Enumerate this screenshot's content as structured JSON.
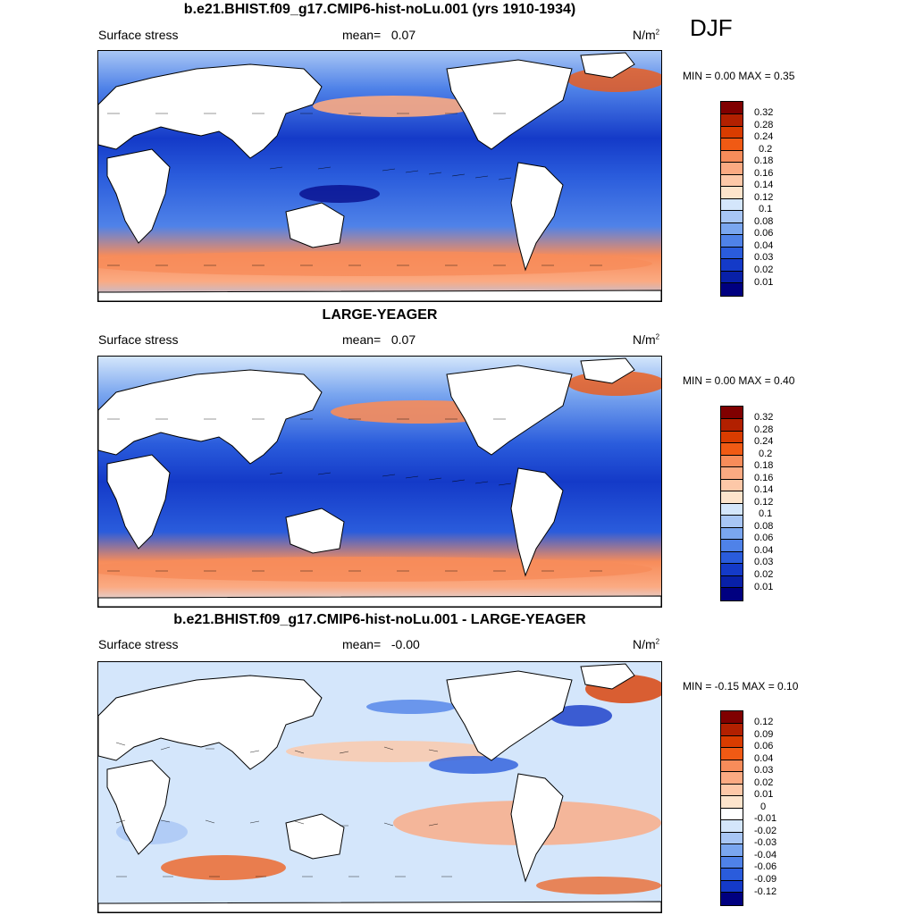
{
  "season": "DJF",
  "panels": [
    {
      "title": "b.e21.BHIST.f09_g17.CMIP6-hist-noLu.001 (yrs 1910-1934)",
      "left_label": "Surface stress",
      "mean_label": "mean=",
      "mean_value": "0.07",
      "units": "N/m",
      "units_sup": "2",
      "minmax": "MIN =   0.00 MAX =   0.35",
      "colorbar_labels": [
        "0.32",
        "0.28",
        "0.24",
        "0.2",
        "0.18",
        "0.16",
        "0.14",
        "0.12",
        "0.1",
        "0.08",
        "0.06",
        "0.04",
        "0.03",
        "0.02",
        "0.01"
      ]
    },
    {
      "title": "LARGE-YEAGER",
      "left_label": "Surface stress",
      "mean_label": "mean=",
      "mean_value": "0.07",
      "units": "N/m",
      "units_sup": "2",
      "minmax": "MIN =   0.00 MAX =   0.40",
      "colorbar_labels": [
        "0.32",
        "0.28",
        "0.24",
        "0.2",
        "0.18",
        "0.16",
        "0.14",
        "0.12",
        "0.1",
        "0.08",
        "0.06",
        "0.04",
        "0.03",
        "0.02",
        "0.01"
      ]
    },
    {
      "title": "b.e21.BHIST.f09_g17.CMIP6-hist-noLu.001 - LARGE-YEAGER",
      "left_label": "Surface stress",
      "mean_label": "mean=",
      "mean_value": "-0.00",
      "units": "N/m",
      "units_sup": "2",
      "minmax": "MIN =  -0.15 MAX =   0.10",
      "colorbar_labels": [
        "0.12",
        "0.09",
        "0.06",
        "0.04",
        "0.03",
        "0.02",
        "0.01",
        "0",
        "-0.01",
        "-0.02",
        "-0.03",
        "-0.04",
        "-0.06",
        "-0.09",
        "-0.12"
      ]
    }
  ],
  "colors": {
    "abs_scale": [
      "#800000",
      "#b22000",
      "#d93c00",
      "#f05a14",
      "#f78c5a",
      "#fbaa82",
      "#fdc8a8",
      "#fde4cc",
      "#d4e6fb",
      "#a8c6f5",
      "#7aa6ef",
      "#4f82e8",
      "#2a5cdc",
      "#143ac8",
      "#0820a8",
      "#000080"
    ],
    "diff_scale": [
      "#800000",
      "#b22000",
      "#d93c00",
      "#f05a14",
      "#f78c5a",
      "#fbaa82",
      "#fdc8a8",
      "#fde4cc",
      "#ffffff",
      "#d4e6fb",
      "#a8c6f5",
      "#7aa6ef",
      "#4f82e8",
      "#2a5cdc",
      "#143ac8",
      "#000080"
    ],
    "land": "#ffffff",
    "ocean_mid": "#4f82e8"
  }
}
